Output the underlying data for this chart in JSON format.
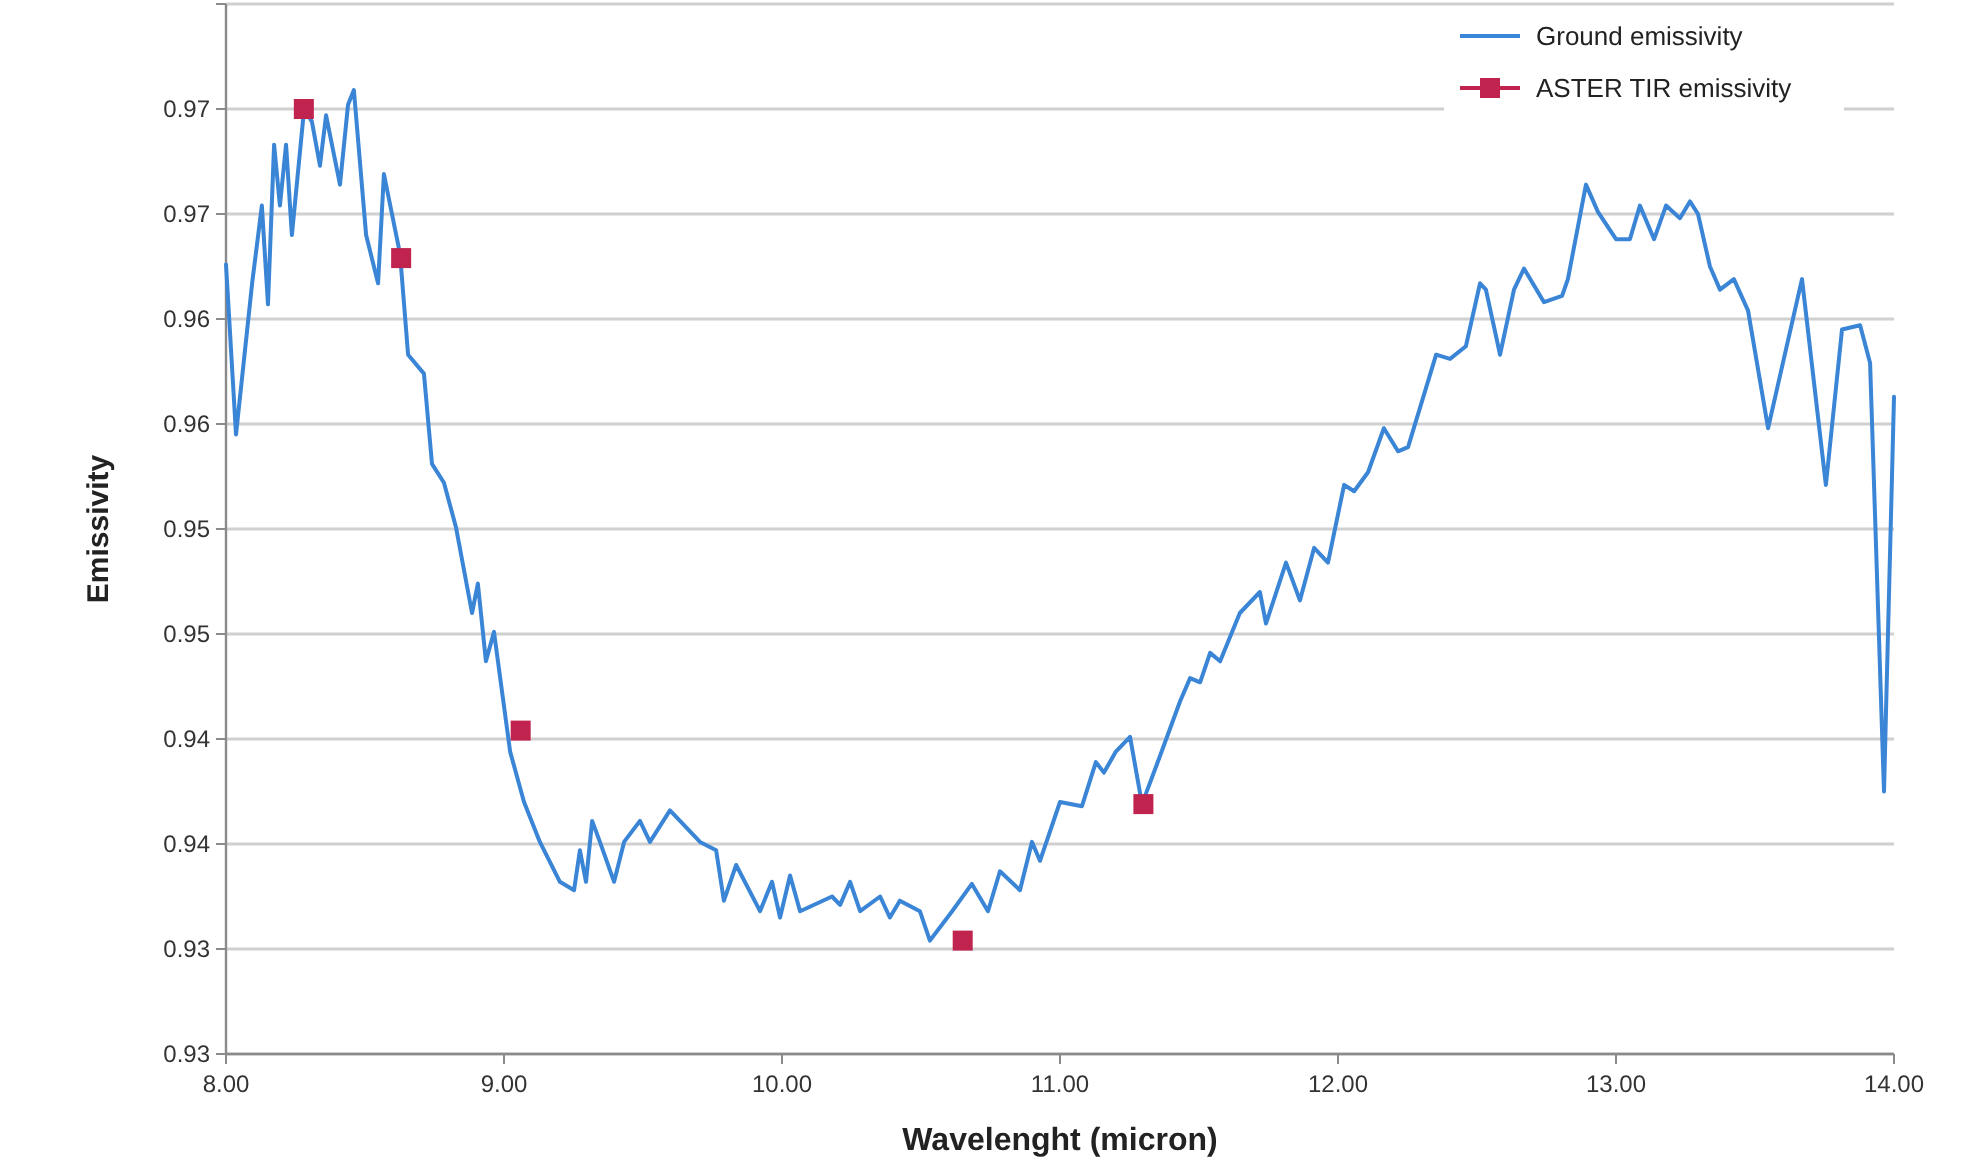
{
  "chart_data": {
    "type": "line",
    "xlabel": "Wavelenght (micron)",
    "ylabel": "Emissivity",
    "xlim": [
      8,
      14
    ],
    "xticks": [
      {
        "value": 8,
        "label": "8.00"
      },
      {
        "value": 9,
        "label": "9.00"
      },
      {
        "value": 10,
        "label": "10.00"
      },
      {
        "value": 11,
        "label": "11.00"
      },
      {
        "value": 12,
        "label": "12.00"
      },
      {
        "value": 13,
        "label": "13.00"
      },
      {
        "value": 14,
        "label": "14.00"
      }
    ],
    "ylim": [
      0.925,
      0.975
    ],
    "yticks": [
      {
        "value": 0.925,
        "label": "0.93"
      },
      {
        "value": 0.93,
        "label": "0.93"
      },
      {
        "value": 0.935,
        "label": "0.94"
      },
      {
        "value": 0.94,
        "label": "0.94"
      },
      {
        "value": 0.945,
        "label": "0.95"
      },
      {
        "value": 0.95,
        "label": "0.95"
      },
      {
        "value": 0.955,
        "label": "0.96"
      },
      {
        "value": 0.96,
        "label": "0.96"
      },
      {
        "value": 0.965,
        "label": "0.97"
      },
      {
        "value": 0.97,
        "label": "0.97"
      },
      {
        "value": 0.975,
        "label": null
      }
    ],
    "grid": "y",
    "legend": "top right",
    "series": [
      {
        "name": "Ground emissivity",
        "color": "#3a85d6",
        "marker": "none",
        "x": [
          8.0,
          8.036,
          8.094,
          8.129,
          8.151,
          8.173,
          8.194,
          8.216,
          8.237,
          8.281,
          8.309,
          8.338,
          8.36,
          8.41,
          8.439,
          8.46,
          8.504,
          8.547,
          8.568,
          8.626,
          8.655,
          8.712,
          8.741,
          8.784,
          8.827,
          8.885,
          8.906,
          8.935,
          8.964,
          9.022,
          9.072,
          9.129,
          9.201,
          9.252,
          9.273,
          9.295,
          9.317,
          9.345,
          9.396,
          9.432,
          9.489,
          9.525,
          9.597,
          9.705,
          9.763,
          9.791,
          9.835,
          9.921,
          9.964,
          9.993,
          10.029,
          10.065,
          10.18,
          10.209,
          10.245,
          10.281,
          10.353,
          10.388,
          10.424,
          10.496,
          10.532,
          10.612,
          10.683,
          10.741,
          10.784,
          10.856,
          10.899,
          10.928,
          11.0,
          11.079,
          11.129,
          11.158,
          11.201,
          11.252,
          11.295,
          11.36,
          11.432,
          11.468,
          11.504,
          11.54,
          11.576,
          11.647,
          11.719,
          11.741,
          11.813,
          11.863,
          11.914,
          11.964,
          12.022,
          12.058,
          12.108,
          12.165,
          12.216,
          12.252,
          12.353,
          12.403,
          12.46,
          12.511,
          12.532,
          12.583,
          12.633,
          12.669,
          12.741,
          12.806,
          12.827,
          12.892,
          12.935,
          13.0,
          13.05,
          13.086,
          13.137,
          13.18,
          13.23,
          13.266,
          13.295,
          13.338,
          13.374,
          13.424,
          13.475,
          13.547,
          13.669,
          13.755,
          13.813,
          13.878,
          13.914,
          13.964,
          14.0
        ],
        "values": [
          0.9626,
          0.9545,
          0.9617,
          0.9654,
          0.9607,
          0.9683,
          0.9654,
          0.9683,
          0.964,
          0.97,
          0.9694,
          0.9673,
          0.9697,
          0.9664,
          0.9702,
          0.9709,
          0.964,
          0.9617,
          0.9669,
          0.9631,
          0.9583,
          0.9574,
          0.9531,
          0.9522,
          0.9501,
          0.946,
          0.9474,
          0.9437,
          0.9451,
          0.9394,
          0.937,
          0.9351,
          0.9332,
          0.9328,
          0.9347,
          0.9332,
          0.9361,
          0.9351,
          0.9332,
          0.9351,
          0.9361,
          0.9351,
          0.9366,
          0.9351,
          0.9347,
          0.9323,
          0.934,
          0.9318,
          0.9332,
          0.9315,
          0.9335,
          0.9318,
          0.9325,
          0.9321,
          0.9332,
          0.9318,
          0.9325,
          0.9315,
          0.9323,
          0.9318,
          0.9304,
          0.9318,
          0.9331,
          0.9318,
          0.9337,
          0.9328,
          0.9351,
          0.9342,
          0.937,
          0.9368,
          0.9389,
          0.9384,
          0.9394,
          0.9401,
          0.9369,
          0.9392,
          0.9418,
          0.9429,
          0.9427,
          0.9441,
          0.9437,
          0.946,
          0.947,
          0.9455,
          0.9484,
          0.9466,
          0.9491,
          0.9484,
          0.9521,
          0.9518,
          0.9527,
          0.9548,
          0.9537,
          0.9539,
          0.9583,
          0.9581,
          0.9587,
          0.9617,
          0.9614,
          0.9583,
          0.9614,
          0.9624,
          0.9608,
          0.9611,
          0.9619,
          0.9664,
          0.9651,
          0.9638,
          0.9638,
          0.9654,
          0.9638,
          0.9654,
          0.9648,
          0.9656,
          0.965,
          0.9625,
          0.9614,
          0.9619,
          0.9604,
          0.9548,
          0.9619,
          0.9521,
          0.9595,
          0.9597,
          0.9579,
          0.9375,
          0.9563
        ]
      },
      {
        "name": "ASTER TIR emissivity",
        "color": "#c0234e",
        "type": "scatter",
        "marker": "square",
        "x": [
          8.28,
          8.63,
          9.06,
          10.65,
          11.3
        ],
        "values": [
          0.97,
          0.9629,
          0.9404,
          0.9304,
          0.9369
        ]
      }
    ]
  }
}
